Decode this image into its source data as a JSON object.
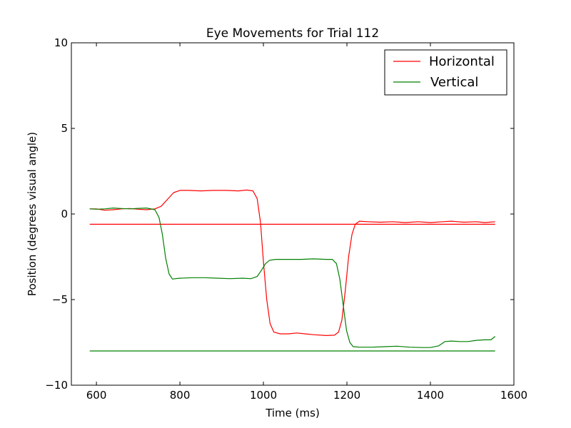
{
  "chart_data": {
    "type": "line",
    "title": "Eye Movements for Trial 112",
    "xlabel": "Time (ms)",
    "ylabel": "Position (degrees visual angle)",
    "xlim": [
      540,
      1600
    ],
    "ylim": [
      -10,
      10
    ],
    "xticks": [
      600,
      800,
      1000,
      1200,
      1400,
      1600
    ],
    "xtick_labels": [
      "600",
      "800",
      "1000",
      "1200",
      "1400",
      "1600"
    ],
    "yticks": [
      10,
      5,
      0,
      -5,
      -10
    ],
    "ytick_labels": [
      "10",
      "5",
      "0",
      "−5",
      "−10"
    ],
    "grid": false,
    "legend_position": "top-right",
    "series": [
      {
        "name": "Horizontal",
        "color": "#ff0000",
        "points": [
          [
            584,
            0.3
          ],
          [
            600,
            0.3
          ],
          [
            620,
            0.22
          ],
          [
            640,
            0.25
          ],
          [
            660,
            0.3
          ],
          [
            680,
            0.32
          ],
          [
            700,
            0.28
          ],
          [
            720,
            0.25
          ],
          [
            740,
            0.3
          ],
          [
            755,
            0.45
          ],
          [
            770,
            0.85
          ],
          [
            785,
            1.25
          ],
          [
            800,
            1.38
          ],
          [
            820,
            1.38
          ],
          [
            850,
            1.35
          ],
          [
            880,
            1.38
          ],
          [
            910,
            1.38
          ],
          [
            940,
            1.35
          ],
          [
            960,
            1.4
          ],
          [
            975,
            1.35
          ],
          [
            985,
            0.9
          ],
          [
            993,
            -0.5
          ],
          [
            1000,
            -2.8
          ],
          [
            1008,
            -5.0
          ],
          [
            1016,
            -6.4
          ],
          [
            1025,
            -6.9
          ],
          [
            1040,
            -7.0
          ],
          [
            1060,
            -7.0
          ],
          [
            1080,
            -6.95
          ],
          [
            1100,
            -7.0
          ],
          [
            1120,
            -7.05
          ],
          [
            1150,
            -7.1
          ],
          [
            1170,
            -7.08
          ],
          [
            1180,
            -6.9
          ],
          [
            1188,
            -6.2
          ],
          [
            1196,
            -4.5
          ],
          [
            1204,
            -2.5
          ],
          [
            1212,
            -1.2
          ],
          [
            1220,
            -0.6
          ],
          [
            1230,
            -0.42
          ],
          [
            1250,
            -0.45
          ],
          [
            1280,
            -0.48
          ],
          [
            1310,
            -0.45
          ],
          [
            1340,
            -0.5
          ],
          [
            1370,
            -0.45
          ],
          [
            1400,
            -0.5
          ],
          [
            1430,
            -0.45
          ],
          [
            1450,
            -0.42
          ],
          [
            1480,
            -0.48
          ],
          [
            1510,
            -0.45
          ],
          [
            1530,
            -0.5
          ],
          [
            1555,
            -0.45
          ]
        ]
      },
      {
        "name": "Vertical",
        "color": "#008000",
        "points": [
          [
            584,
            0.3
          ],
          [
            600,
            0.28
          ],
          [
            620,
            0.3
          ],
          [
            640,
            0.35
          ],
          [
            660,
            0.32
          ],
          [
            680,
            0.3
          ],
          [
            700,
            0.33
          ],
          [
            720,
            0.35
          ],
          [
            740,
            0.25
          ],
          [
            750,
            -0.2
          ],
          [
            758,
            -1.2
          ],
          [
            766,
            -2.6
          ],
          [
            774,
            -3.5
          ],
          [
            782,
            -3.8
          ],
          [
            800,
            -3.75
          ],
          [
            830,
            -3.72
          ],
          [
            860,
            -3.72
          ],
          [
            890,
            -3.75
          ],
          [
            920,
            -3.78
          ],
          [
            950,
            -3.75
          ],
          [
            970,
            -3.78
          ],
          [
            985,
            -3.65
          ],
          [
            995,
            -3.3
          ],
          [
            1005,
            -2.9
          ],
          [
            1015,
            -2.7
          ],
          [
            1030,
            -2.65
          ],
          [
            1060,
            -2.65
          ],
          [
            1090,
            -2.65
          ],
          [
            1120,
            -2.62
          ],
          [
            1150,
            -2.65
          ],
          [
            1165,
            -2.65
          ],
          [
            1175,
            -2.9
          ],
          [
            1183,
            -3.8
          ],
          [
            1191,
            -5.3
          ],
          [
            1199,
            -6.8
          ],
          [
            1207,
            -7.5
          ],
          [
            1215,
            -7.75
          ],
          [
            1230,
            -7.78
          ],
          [
            1260,
            -7.78
          ],
          [
            1290,
            -7.75
          ],
          [
            1320,
            -7.72
          ],
          [
            1350,
            -7.78
          ],
          [
            1380,
            -7.8
          ],
          [
            1400,
            -7.8
          ],
          [
            1420,
            -7.7
          ],
          [
            1435,
            -7.45
          ],
          [
            1450,
            -7.42
          ],
          [
            1470,
            -7.45
          ],
          [
            1490,
            -7.45
          ],
          [
            1510,
            -7.38
          ],
          [
            1530,
            -7.35
          ],
          [
            1545,
            -7.35
          ],
          [
            1555,
            -7.15
          ]
        ]
      },
      {
        "name": "",
        "color": "#ff0000",
        "points": [
          [
            584,
            -0.6
          ],
          [
            1555,
            -0.6
          ]
        ]
      },
      {
        "name": "",
        "color": "#008000",
        "points": [
          [
            584,
            -8.0
          ],
          [
            1555,
            -8.0
          ]
        ]
      }
    ]
  }
}
